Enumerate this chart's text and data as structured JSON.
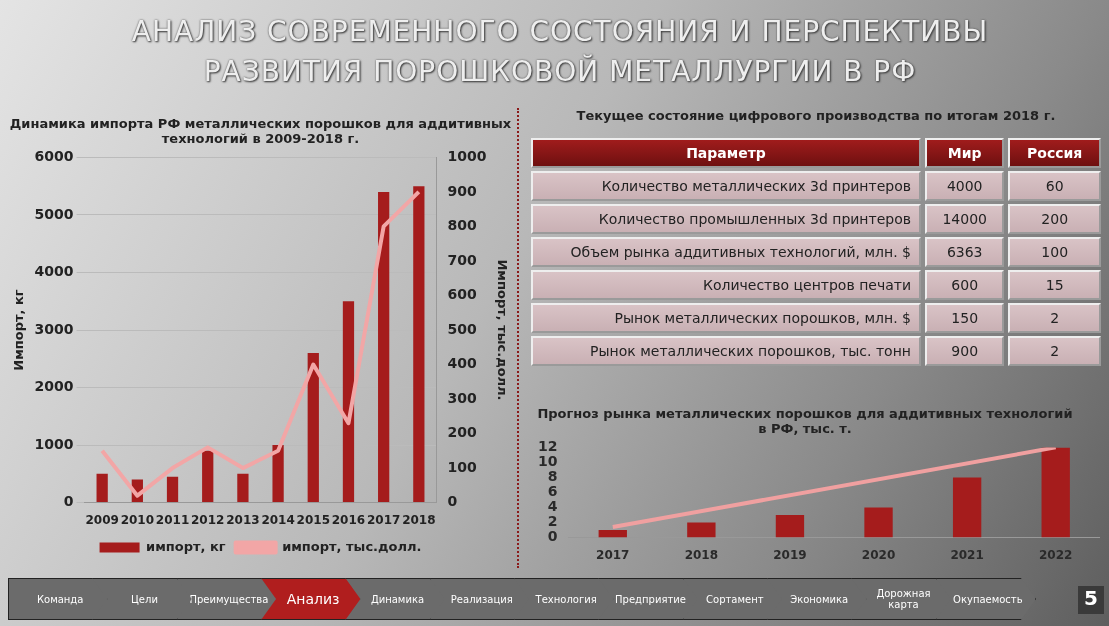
{
  "chart_data": [
    {
      "type": "other",
      "title": "АНАЛИЗ СОВРЕМЕННОГО СОСТОЯНИЯ И ПЕРСПЕКТИВЫ РАЗВИТИЯ ПОРОШКОВОЙ МЕТАЛЛУРГИИ В РФ",
      "annotations": [
        "Команда",
        "Цели",
        "Преимущества",
        "Анализ",
        "Динамика",
        "Реализация",
        "Технология",
        "Предприятие",
        "Сортамент",
        "Экономика",
        "Дорожная карта",
        "Окупаемость",
        "5"
      ],
      "colors": [
        "#6b6b6b",
        "#6b6b6b",
        "#6b6b6b",
        "#b01e1e",
        "#6b6b6b",
        "#6b6b6b",
        "#6b6b6b",
        "#6b6b6b",
        "#6b6b6b",
        "#6b6b6b",
        "#6b6b6b",
        "#6b6b6b",
        "#3a3a3a"
      ]
    },
    {
      "type": "bar",
      "title": "Динамика импорта РФ металлических порошков для аддитивных технологий в 2009-2018 г.",
      "ylabel": "Импорт, кг",
      "y2label": "Импорт, тыс.долл.",
      "categories": [
        "2009",
        "2010",
        "2011",
        "2012",
        "2013",
        "2014",
        "2015",
        "2016",
        "2017",
        "2018"
      ],
      "series": [
        {
          "name": "импорт, кг",
          "type": "bar",
          "color": "#a51c1c",
          "values": [
            500,
            400,
            450,
            900,
            500,
            1000,
            2600,
            3500,
            5400,
            5500
          ]
        },
        {
          "name": "импорт, тыс.долл.",
          "type": "line",
          "axis": "y2",
          "color": "#f2a6a6",
          "values": [
            150,
            20,
            100,
            160,
            100,
            150,
            400,
            230,
            800,
            900
          ]
        }
      ],
      "ylim": [
        0,
        6000
      ],
      "yticks": [
        0,
        1000,
        2000,
        3000,
        4000,
        5000,
        6000
      ],
      "y2lim": [
        0,
        1000
      ],
      "y2ticks": [
        0,
        100,
        200,
        300,
        400,
        500,
        600,
        700,
        800,
        900,
        1000
      ],
      "grid": "y",
      "legend": "bottom"
    },
    {
      "type": "other",
      "title": "Текущее состояние цифрового производства по итогам 2018 г.",
      "annotations": [
        "Параметр"
      ],
      "data_labels": true,
      "categories": [
        "Количество металлических 3d принтеров",
        "Количество промышленных 3d принтеров",
        "Объем рынка аддитивных  технологий, млн. $",
        "Количество центров печати",
        "Рынок металлических порошков, млн. $",
        "Рынок металлических порошков, тыс. тонн"
      ],
      "series": [
        {
          "name": "Мир",
          "values": [
            4000,
            14000,
            6363,
            600,
            150,
            900
          ]
        },
        {
          "name": "Россия",
          "values": [
            60,
            200,
            100,
            15,
            2,
            2
          ]
        }
      ]
    },
    {
      "type": "bar",
      "title": "Прогноз рынка металлических порошков для аддитивных технологий в РФ, тыс. т.",
      "categories": [
        "2017",
        "2018",
        "2019",
        "2020",
        "2021",
        "2022"
      ],
      "series": [
        {
          "type": "bar",
          "color": "#a51c1c",
          "values": [
            1,
            2,
            3,
            4,
            8,
            12
          ]
        },
        {
          "type": "line",
          "color": "#f0a0a0",
          "values": [
            1.4,
            null,
            null,
            null,
            null,
            12
          ]
        }
      ],
      "ylim": [
        0,
        12
      ],
      "yticks": [
        0,
        2,
        4,
        6,
        8,
        10,
        12
      ]
    }
  ]
}
